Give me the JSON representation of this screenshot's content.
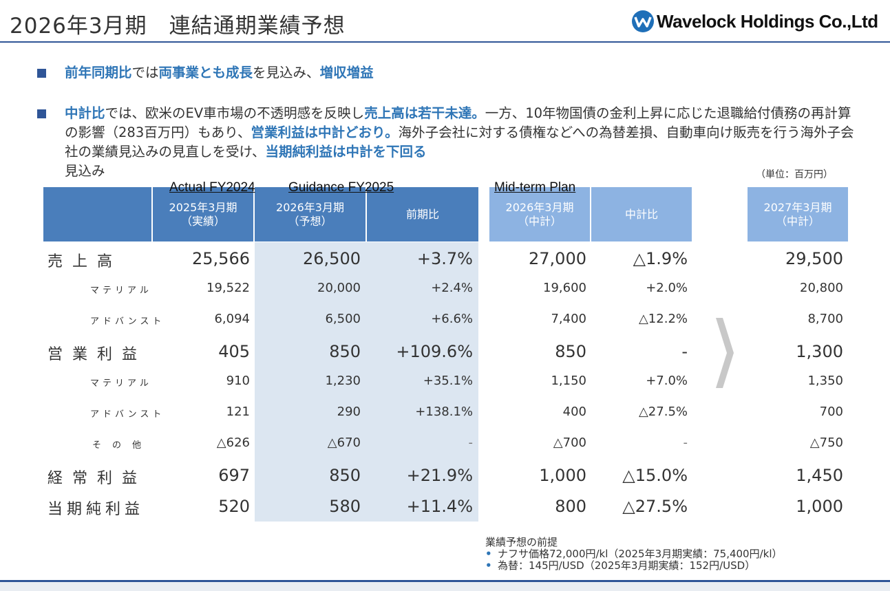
{
  "title": "2026年3月期　連結通期業績予想",
  "logo": {
    "text": "Wavelock Holdings Co.,Ltd",
    "icon": "wavelock-logo-mark"
  },
  "bullet1": {
    "p1": "前年同期比",
    "p2": "では",
    "p3": "両事業とも成長",
    "p4": "を見込み、",
    "p5": "増収増益"
  },
  "bullet2": {
    "p1": "中計比",
    "p2": "では、欧米のEV車市場の不透明感を反映し",
    "p3": "売上高は若干未達。",
    "p4": "一方、10年物国債の金利上昇に応じた退職給付債務の再計算の影響（283百万円）もあり、",
    "p5": "営業利益は中計どおり。",
    "p6": "海外子会社に対する債権などへの為替差損、自動車向け販売を行う海外子会社の業績見込みの見直しを受け、",
    "p7": "当期純利益は中計を下回る",
    "p8": "見込み"
  },
  "unit": "（単位：百万円）",
  "col_labels": {
    "actual": "Actual FY2024",
    "guidance": "Guidance FY2025",
    "midterm": "Mid-term Plan"
  },
  "headers": {
    "h1a": "2025年3月期",
    "h1b": "（実績）",
    "h2a": "2026年3月期",
    "h2b": "（予想）",
    "h3": "前期比",
    "h4a": "2026年3月期",
    "h4b": "（中計）",
    "h5": "中計比",
    "h6a": "2027年3月期",
    "h6b": "（中計）"
  },
  "rows": [
    {
      "label": "売上高",
      "actual": "25,566",
      "guidance": "26,500",
      "yoy": "+3.7%",
      "plan": "27,000",
      "vs_plan": "△1.9%",
      "plan2027": "29,500"
    },
    {
      "label": "マテリアル",
      "actual": "19,522",
      "guidance": "20,000",
      "yoy": "+2.4%",
      "plan": "19,600",
      "vs_plan": "+2.0%",
      "plan2027": "20,800"
    },
    {
      "label": "アドバンスト",
      "actual": "6,094",
      "guidance": "6,500",
      "yoy": "+6.6%",
      "plan": "7,400",
      "vs_plan": "△12.2%",
      "plan2027": "8,700"
    },
    {
      "label": "営業利益",
      "actual": "405",
      "guidance": "850",
      "yoy": "+109.6%",
      "plan": "850",
      "vs_plan": "-",
      "plan2027": "1,300"
    },
    {
      "label": "マテリアル",
      "actual": "910",
      "guidance": "1,230",
      "yoy": "+35.1%",
      "plan": "1,150",
      "vs_plan": "+7.0%",
      "plan2027": "1,350"
    },
    {
      "label": "アドバンスト",
      "actual": "121",
      "guidance": "290",
      "yoy": "+138.1%",
      "plan": "400",
      "vs_plan": "△27.5%",
      "plan2027": "700"
    },
    {
      "label": "その他",
      "actual": "△626",
      "guidance": "△670",
      "yoy": "-",
      "plan": "△700",
      "vs_plan": "-",
      "plan2027": "△750"
    },
    {
      "label": "経常利益",
      "actual": "697",
      "guidance": "850",
      "yoy": "+21.9%",
      "plan": "1,000",
      "vs_plan": "△15.0%",
      "plan2027": "1,450"
    },
    {
      "label": "当期純利益",
      "actual": "520",
      "guidance": "580",
      "yoy": "+11.4%",
      "plan": "800",
      "vs_plan": "△27.5%",
      "plan2027": "1,000"
    }
  ],
  "notes": {
    "title": "業績予想の前提",
    "n1": "ナフサ価格72,000円/kl（2025年3月期実績：75,400円/kl）",
    "n2": "為替：145円/USD（2025年3月期実績：152円/USD）"
  },
  "colors": {
    "accent": "#2f5597",
    "highlight": "#2e75b6",
    "header_dark": "#4a7ebb",
    "header_light": "#8db3e2",
    "shade": "#dce6f1"
  }
}
